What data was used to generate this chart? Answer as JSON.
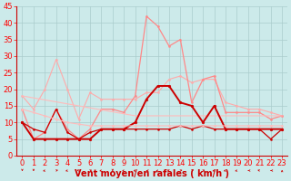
{
  "x": [
    0,
    1,
    2,
    3,
    4,
    5,
    6,
    7,
    8,
    9,
    10,
    11,
    12,
    13,
    14,
    15,
    16,
    17,
    18,
    19,
    20,
    21,
    22,
    23
  ],
  "series": [
    {
      "name": "upper_envelope",
      "color": "#ffaaaa",
      "lw": 0.8,
      "marker": "o",
      "ms": 1.5,
      "values": [
        18,
        14,
        20,
        29,
        20,
        11,
        19,
        17,
        17,
        17,
        17,
        19,
        19,
        23,
        24,
        22,
        23,
        23,
        16,
        15,
        14,
        14,
        13,
        12
      ]
    },
    {
      "name": "rafales_peak",
      "color": "#ff8888",
      "lw": 0.9,
      "marker": "o",
      "ms": 1.5,
      "values": [
        14,
        5,
        7,
        14,
        8,
        5,
        8,
        14,
        14,
        13,
        18,
        42,
        39,
        33,
        35,
        16,
        23,
        24,
        13,
        13,
        13,
        13,
        11,
        12
      ]
    },
    {
      "name": "tendance_upper",
      "color": "#ffbbbb",
      "lw": 0.8,
      "marker": null,
      "ms": 0,
      "values": [
        18,
        17.4,
        16.8,
        16.2,
        15.6,
        15.0,
        14.4,
        13.8,
        13.2,
        12.6,
        12.0,
        12.0,
        12.0,
        12.0,
        12.0,
        12.0,
        12.0,
        12.0,
        12.0,
        12.0,
        12.0,
        12.0,
        12.0,
        12.0
      ]
    },
    {
      "name": "vent_moyen",
      "color": "#cc0000",
      "lw": 1.4,
      "marker": "o",
      "ms": 2.0,
      "values": [
        10,
        5,
        5,
        5,
        5,
        5,
        5,
        8,
        8,
        8,
        10,
        17,
        21,
        21,
        16,
        15,
        10,
        15,
        8,
        8,
        8,
        8,
        8,
        8
      ]
    },
    {
      "name": "vent_min_line",
      "color": "#cc0000",
      "lw": 0.9,
      "marker": "o",
      "ms": 1.5,
      "values": [
        10,
        8,
        7,
        14,
        7,
        5,
        7,
        8,
        8,
        8,
        8,
        8,
        8,
        8,
        9,
        8,
        9,
        8,
        8,
        8,
        8,
        8,
        5,
        8
      ]
    },
    {
      "name": "tendance_lower",
      "color": "#ffbbbb",
      "lw": 0.8,
      "marker": "o",
      "ms": 1.5,
      "values": [
        14,
        13,
        12,
        11,
        10,
        9.5,
        9,
        9,
        9,
        9,
        9,
        9,
        9,
        9,
        9,
        9,
        9,
        9,
        9,
        9,
        9,
        9,
        9,
        9
      ]
    }
  ],
  "xlabel": "Vent moyen/en rafales ( km/h )",
  "xlim": [
    -0.5,
    23.5
  ],
  "ylim": [
    0,
    45
  ],
  "yticks": [
    0,
    5,
    10,
    15,
    20,
    25,
    30,
    35,
    40,
    45
  ],
  "xticks": [
    0,
    1,
    2,
    3,
    4,
    5,
    6,
    7,
    8,
    9,
    10,
    11,
    12,
    13,
    14,
    15,
    16,
    17,
    18,
    19,
    20,
    21,
    22,
    23
  ],
  "bg_color": "#cceaea",
  "grid_color": "#aacccc",
  "xlabel_color": "#cc0000",
  "xlabel_fontsize": 7,
  "tick_fontsize": 6,
  "arrow_dirs": [
    180,
    180,
    225,
    45,
    225,
    315,
    45,
    225,
    180,
    225,
    225,
    270,
    225,
    315,
    45,
    45,
    45,
    225,
    225,
    225,
    270,
    315,
    270,
    0
  ]
}
